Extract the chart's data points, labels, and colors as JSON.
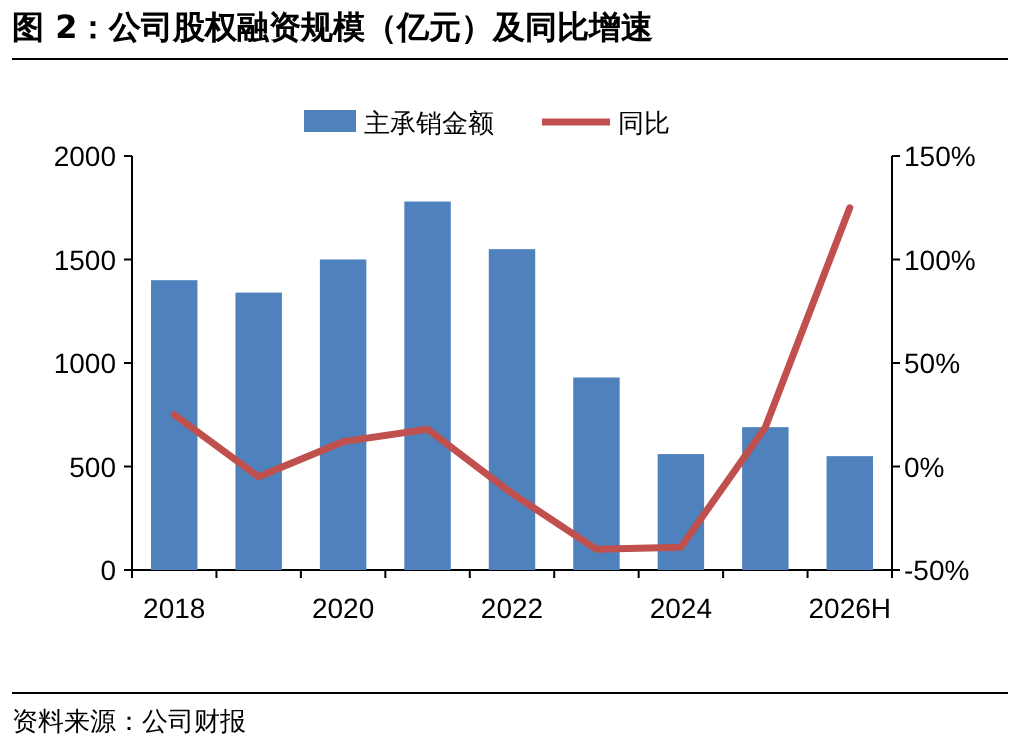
{
  "chart_data": {
    "type": "bar",
    "title": "图 2：公司股权融资规模（亿元）及同比增速",
    "annotations": [
      "资料来源：公司财报"
    ],
    "categories": [
      "2018",
      null,
      "2020",
      null,
      "2022",
      null,
      "2024",
      null,
      "2026H"
    ],
    "series": [
      {
        "name": "主承销金额",
        "color": "#4f81bd",
        "values": [
          1400,
          1340,
          1500,
          1780,
          1550,
          930,
          560,
          690,
          550
        ]
      },
      {
        "name": "同比",
        "type": "line",
        "axis": "y2",
        "color": "#c0504d",
        "values": [
          25,
          -5,
          12,
          18,
          -13,
          -40,
          -39,
          19,
          125
        ]
      }
    ],
    "ylim": [
      0,
      2000
    ],
    "yticks": [
      0,
      500,
      1000,
      1500,
      2000
    ],
    "y2lim": [
      -50,
      150
    ],
    "y2ticks": [
      {
        "value": -50,
        "label": "-50%"
      },
      {
        "value": 0,
        "label": "0%"
      },
      {
        "value": 50,
        "label": "50%"
      },
      {
        "value": 100,
        "label": "100%"
      },
      {
        "value": 150,
        "label": "150%"
      }
    ],
    "legend": "top"
  }
}
